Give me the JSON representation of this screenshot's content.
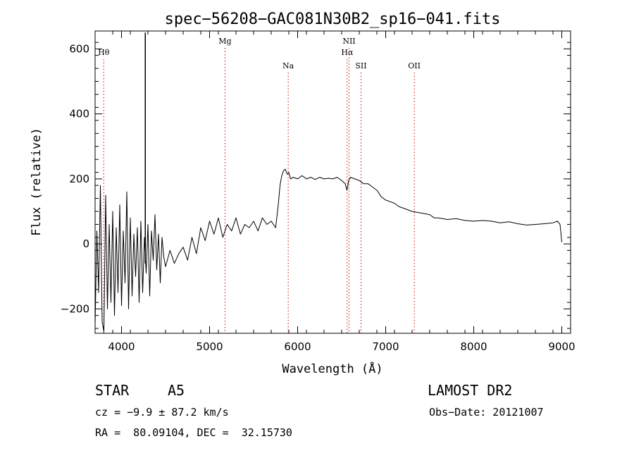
{
  "chart_data": {
    "type": "line",
    "title": "spec−56208−GAC081N30B2_sp16−041.fits",
    "xlabel": "Wavelength (Å)",
    "ylabel": "Flux (relative)",
    "xlim": [
      3700,
      9100
    ],
    "ylim": [
      -275,
      655
    ],
    "xticks": [
      4000,
      5000,
      6000,
      7000,
      8000,
      9000
    ],
    "yticks": [
      -200,
      0,
      200,
      400,
      600
    ],
    "line_color": "#000000",
    "marker_color": "#cc0000",
    "series": [
      {
        "x": [
          3700,
          3720,
          3740,
          3760,
          3780,
          3800,
          3820,
          3840,
          3860,
          3880,
          3900,
          3920,
          3940,
          3960,
          3980,
          4000,
          4020,
          4040,
          4060,
          4080,
          4100,
          4120,
          4140,
          4160,
          4180,
          4200,
          4220,
          4240,
          4260,
          4280,
          4300,
          4320,
          4340,
          4360,
          4380,
          4400,
          4420,
          4440,
          4460,
          4480,
          4500,
          4550,
          4600,
          4650,
          4700,
          4750,
          4800,
          4850,
          4900,
          4950,
          5000,
          5050,
          5100,
          5150,
          5200,
          5250,
          5300,
          5350,
          5400,
          5450,
          5500,
          5550,
          5600,
          5650,
          5700,
          5750,
          5780,
          5800,
          5820,
          5840,
          5860,
          5880,
          5900,
          5920,
          5950,
          6000,
          6050,
          6100,
          6150,
          6200,
          6250,
          6300,
          6350,
          6400,
          6450,
          6500,
          6540,
          6560,
          6580,
          6600,
          6650,
          6700,
          6750,
          6800,
          6850,
          6900,
          6950,
          7000,
          7050,
          7100,
          7150,
          7200,
          7300,
          7400,
          7500,
          7550,
          7600,
          7700,
          7800,
          7900,
          8000,
          8100,
          8200,
          8300,
          8400,
          8500,
          8600,
          8700,
          8800,
          8900,
          8950,
          8980,
          9000
        ],
        "y": [
          -250,
          40,
          -150,
          180,
          -240,
          -270,
          150,
          -200,
          60,
          -180,
          100,
          -220,
          50,
          -150,
          120,
          -190,
          40,
          -120,
          160,
          -200,
          80,
          -160,
          30,
          -100,
          50,
          -180,
          70,
          -150,
          20,
          -90,
          60,
          -160,
          40,
          -50,
          90,
          -80,
          30,
          -120,
          20,
          -40,
          -70,
          -20,
          -60,
          -30,
          -10,
          -50,
          20,
          -30,
          50,
          10,
          70,
          30,
          80,
          20,
          60,
          40,
          80,
          30,
          60,
          50,
          70,
          40,
          80,
          60,
          70,
          50,
          120,
          180,
          210,
          225,
          230,
          215,
          220,
          200,
          205,
          200,
          210,
          200,
          205,
          198,
          205,
          200,
          202,
          200,
          205,
          195,
          185,
          165,
          195,
          205,
          200,
          195,
          185,
          185,
          175,
          165,
          145,
          135,
          130,
          125,
          115,
          110,
          100,
          95,
          90,
          80,
          80,
          75,
          78,
          72,
          70,
          72,
          70,
          65,
          68,
          62,
          58,
          60,
          62,
          65,
          70,
          60,
          5
        ]
      }
    ],
    "spike": {
      "x": 4270,
      "y_min": -60,
      "y_max": 650
    },
    "line_markers": [
      {
        "label": "Hθ",
        "x": 3798,
        "row": 1
      },
      {
        "label": "Mg",
        "x": 5175,
        "row": 0
      },
      {
        "label": "Na",
        "x": 5893,
        "row": 2
      },
      {
        "label": "NII",
        "x": 6584,
        "row": 0
      },
      {
        "label": "Hα",
        "x": 6563,
        "row": 1
      },
      {
        "label": "SII",
        "x": 6720,
        "row": 2
      },
      {
        "label": "OII",
        "x": 7325,
        "row": 2
      }
    ]
  },
  "info": {
    "class_label": "STAR",
    "subclass": "A5",
    "survey": "LAMOST DR2",
    "cz": "cz = −9.9 ± 87.2 km/s",
    "obs_date": "Obs−Date: 20121007",
    "coords": "RA =  80.09104, DEC =  32.15730"
  }
}
